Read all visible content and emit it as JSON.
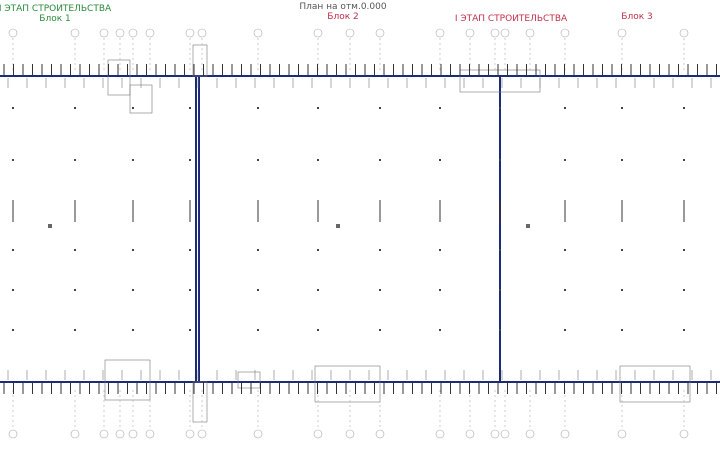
{
  "header": {
    "title": "План на отм.0.000"
  },
  "labels": [
    {
      "stage": "I ЭТАП СТРОИТЕЛЬСТВА",
      "block": "Блок 1"
    },
    {
      "block": "Блок 2"
    },
    {
      "stage": "I ЭТАП СТРОИТЕЛЬСТВА"
    },
    {
      "block": "Блок 3"
    }
  ]
}
